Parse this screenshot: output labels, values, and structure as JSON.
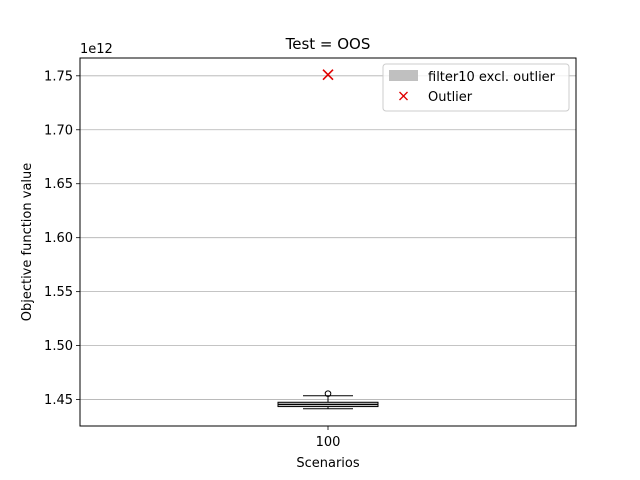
{
  "chart_data": {
    "type": "box",
    "title": "Test = OOS",
    "xlabel": "Scenarios",
    "ylabel": "Objective function value",
    "y_offset_label": "1e12",
    "y_multiplier": 1000000000000.0,
    "ylim": [
      1.4255,
      1.7665
    ],
    "yticks": [
      1.45,
      1.5,
      1.55,
      1.6,
      1.65,
      1.7,
      1.75
    ],
    "ytick_labels": [
      "1.45",
      "1.50",
      "1.55",
      "1.60",
      "1.65",
      "1.70",
      "1.75"
    ],
    "grid": "y",
    "categories": [
      "100"
    ],
    "box": {
      "name": "filter10 excl. outlier",
      "whisker_low": 1.4415,
      "q1": 1.4435,
      "median": 1.4455,
      "q3": 1.4475,
      "whisker_high": 1.4535,
      "fliers": [
        1.4555
      ],
      "color": "#c0c0c0"
    },
    "outlier": {
      "name": "Outlier",
      "value": 1.751,
      "color": "#e00000",
      "marker": "x"
    },
    "legend": {
      "location": "upper right",
      "entries": [
        "filter10 excl. outlier",
        "Outlier"
      ]
    }
  }
}
